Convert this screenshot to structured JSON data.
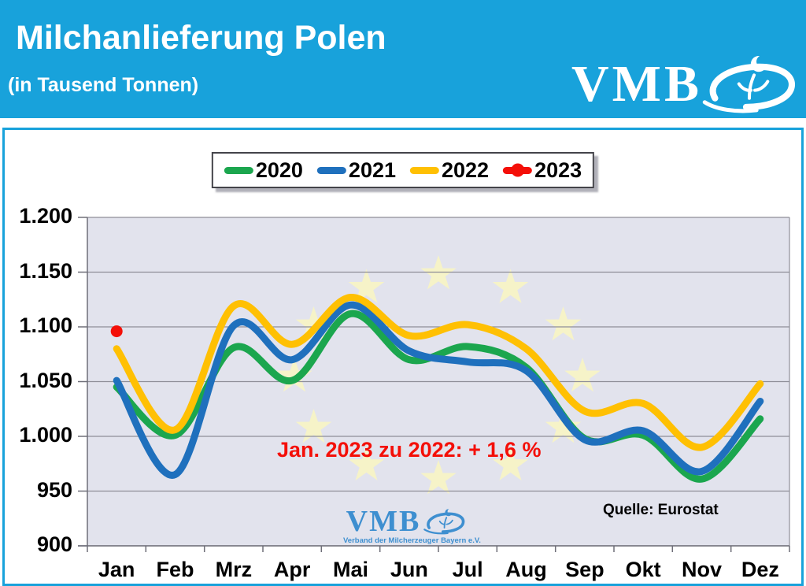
{
  "header": {
    "title": "Milchanlieferung Polen",
    "subtitle": "(in Tausend Tonnen)",
    "logo_text": "VMB",
    "background_color": "#18A2DB"
  },
  "legend": {
    "items": [
      {
        "label": "2020",
        "color": "#1BA64E",
        "marker": "line"
      },
      {
        "label": "2021",
        "color": "#1F70BD",
        "marker": "line"
      },
      {
        "label": "2022",
        "color": "#FFC003",
        "marker": "line"
      },
      {
        "label": "2023",
        "color": "#F40F08",
        "marker": "line-dot"
      }
    ]
  },
  "annotation": {
    "text": "Jan. 2023 zu 2022: + 1,6 %",
    "color": "#F40F08"
  },
  "source": {
    "text": "Quelle: Eurostat"
  },
  "watermark": {
    "text": "VMB",
    "caption": "Verband der Milcherzeuger Bayern e.V.",
    "color": "#3E8FD0"
  },
  "chart_data": {
    "type": "line",
    "title": "Milchanlieferung Polen (in Tausend Tonnen)",
    "categories": [
      "Jan",
      "Feb",
      "Mrz",
      "Apr",
      "Mai",
      "Jun",
      "Jul",
      "Aug",
      "Sep",
      "Okt",
      "Nov",
      "Dez"
    ],
    "series": [
      {
        "name": "2020",
        "color": "#1BA64E",
        "values": [
          1045,
          1001,
          1081,
          1051,
          1112,
          1070,
          1082,
          1063,
          998,
          1001,
          961,
          1016
        ]
      },
      {
        "name": "2021",
        "color": "#1F70BD",
        "values": [
          1051,
          965,
          1101,
          1070,
          1120,
          1078,
          1068,
          1060,
          997,
          1005,
          968,
          1032
        ]
      },
      {
        "name": "2022",
        "color": "#FFC003",
        "values": [
          1080,
          1006,
          1119,
          1084,
          1127,
          1092,
          1102,
          1080,
          1023,
          1030,
          990,
          1048
        ]
      },
      {
        "name": "2023",
        "color": "#F40F08",
        "values": [
          1096
        ],
        "marker": "dot"
      }
    ],
    "xlabel": "",
    "ylabel": "",
    "ylim": [
      900,
      1200
    ],
    "ytick_step": 50,
    "ytick_labels": [
      "1.200",
      "1.150",
      "1.100",
      "1.050",
      "1.000",
      "950",
      "900"
    ],
    "grid": true,
    "legend_position": "top",
    "plot_background": "#E2E3ED",
    "eu_stars": true,
    "star_color": "#F6F3C8"
  }
}
